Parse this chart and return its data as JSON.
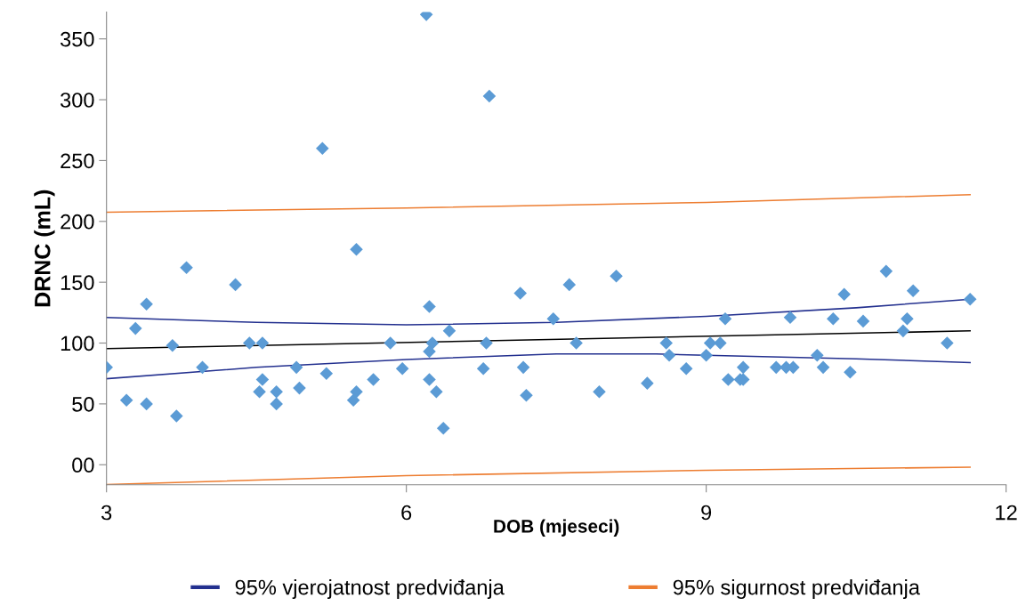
{
  "chart_data": {
    "type": "scatter",
    "xlabel": "DOB (mjeseci)",
    "ylabel": "DRNC (mL)",
    "xlim": [
      3,
      12
    ],
    "xticks": [
      3,
      6,
      9,
      12
    ],
    "ylim": [
      -16.5,
      372
    ],
    "yticks": [
      {
        "value": 0,
        "label": "00"
      },
      50,
      100,
      150,
      200,
      250,
      300,
      350
    ],
    "grid": false,
    "legend": "bottom",
    "series": [
      {
        "color": "#5b9bd5",
        "marker": "diamond",
        "x": [
          3.0,
          3.2,
          3.29,
          3.4,
          3.4,
          3.66,
          3.7,
          3.8,
          3.96,
          4.29,
          4.43,
          4.53,
          4.56,
          4.56,
          4.7,
          4.7,
          4.9,
          4.93,
          5.16,
          5.2,
          5.47,
          5.5,
          5.5,
          5.67,
          5.84,
          5.96,
          6.2,
          6.23,
          6.26,
          6.23,
          6.23,
          6.3,
          6.37,
          6.43,
          6.8,
          6.77,
          6.83,
          7.14,
          7.17,
          7.2,
          7.47,
          7.63,
          7.7,
          7.93,
          8.1,
          8.41,
          8.6,
          8.63,
          8.8,
          9.0,
          9.04,
          9.14,
          9.19,
          9.22,
          9.34,
          9.37,
          9.37,
          9.7,
          9.8,
          9.84,
          9.87,
          10.11,
          10.17,
          10.27,
          10.38,
          10.44,
          10.57,
          10.8,
          10.97,
          11.01,
          11.07,
          11.41,
          11.64
        ],
        "values": [
          80,
          53,
          112,
          132,
          50,
          98,
          40,
          162,
          80,
          148,
          100,
          60,
          100,
          70,
          60,
          50,
          80,
          63,
          260,
          75,
          53,
          177,
          60,
          70,
          100,
          79,
          370,
          130,
          100,
          93,
          70,
          60,
          30,
          110,
          100,
          79,
          303,
          141,
          80,
          57,
          120,
          148,
          100,
          60,
          155,
          67,
          100,
          90,
          79,
          90,
          100,
          100,
          120,
          70,
          70,
          70,
          80,
          80,
          80,
          121,
          80,
          90,
          80,
          120,
          140,
          76,
          118,
          159,
          110,
          120,
          143,
          100,
          136
        ]
      },
      {
        "type": "line",
        "color": "#000000",
        "x": [
          3,
          11.64
        ],
        "values": [
          95.4,
          110
        ]
      },
      {
        "type": "line",
        "name": "95% vjerojatnost predviđanja",
        "color": "#23308f",
        "x": [
          3,
          4.5,
          6,
          7.5,
          9,
          10.5,
          11.64
        ],
        "values": [
          121,
          117,
          115,
          117,
          122,
          129,
          136
        ]
      },
      {
        "type": "line",
        "color": "#23308f",
        "x": [
          3,
          4.5,
          6,
          7.5,
          8.5,
          9,
          10.5,
          11.64
        ],
        "values": [
          70.7,
          80,
          86.5,
          91,
          91,
          90,
          87,
          84
        ]
      },
      {
        "type": "line",
        "name": "95% sigurnost predviđanja",
        "color": "#ed7d31",
        "x": [
          3,
          6,
          9,
          11.64
        ],
        "values": [
          207.6,
          211,
          215.6,
          222
        ]
      },
      {
        "type": "line",
        "color": "#ed7d31",
        "x": [
          3,
          6,
          9,
          11.64
        ],
        "values": [
          -16.3,
          -9,
          -4.6,
          -2
        ]
      }
    ]
  }
}
